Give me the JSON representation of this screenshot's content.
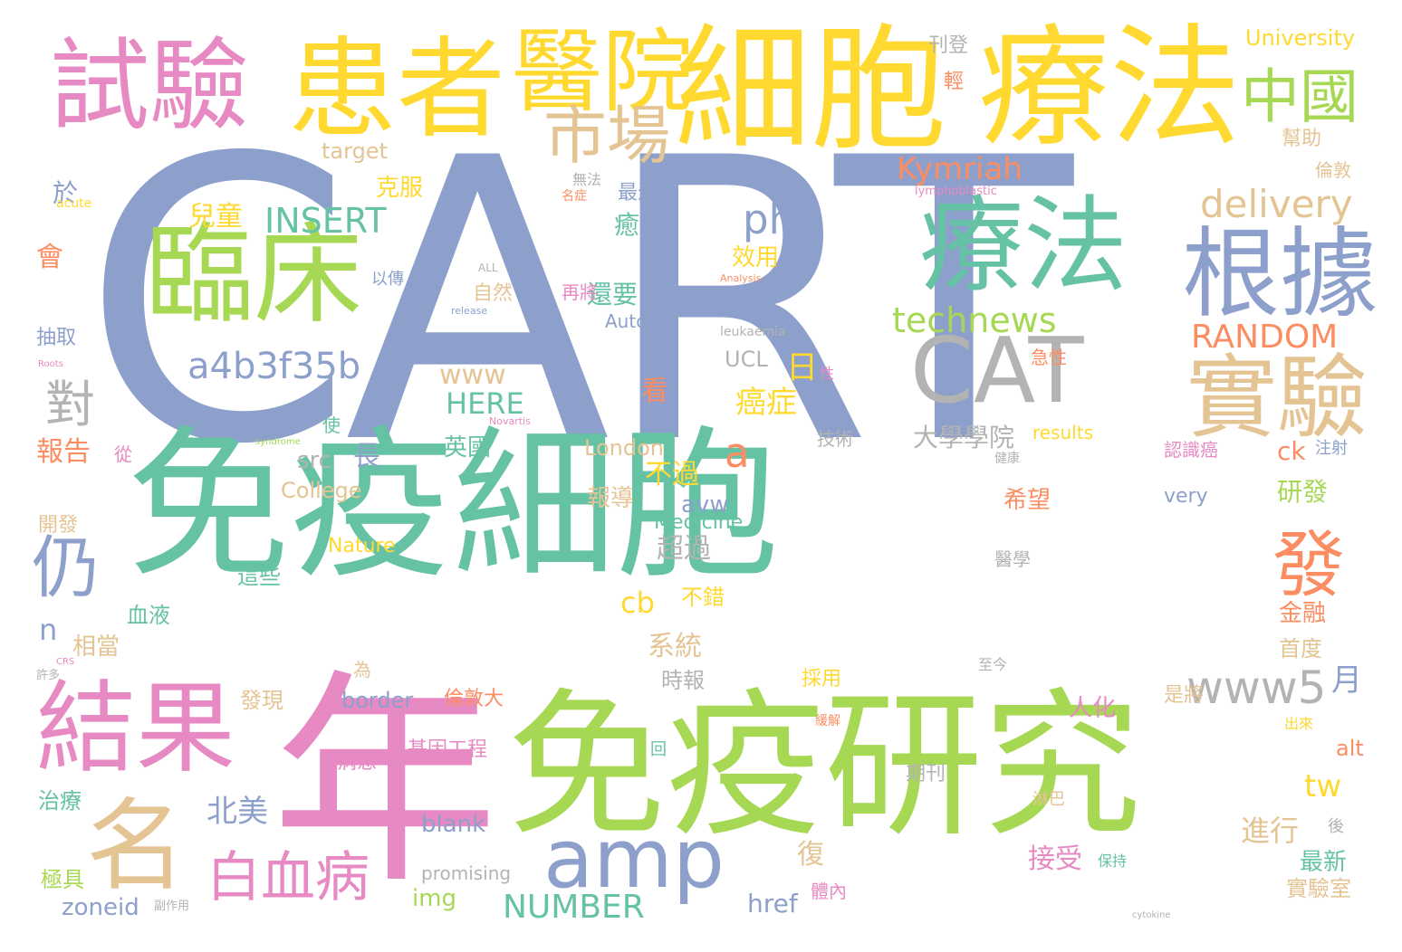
{
  "palette": {
    "teal": "#66c2a5",
    "orange": "#fc8d62",
    "blue": "#8da0cb",
    "pink": "#e78ac3",
    "green": "#a6d854",
    "yellow": "#ffd92f",
    "tan": "#e5c494",
    "gray": "#b3b3b3"
  },
  "words": {
    "cart": "CART",
    "mianyi_xibao": "免疫細胞",
    "mianyi_yanjiu": "免疫研究",
    "nian": "年",
    "xibao": "細胞",
    "liaofa_top": "療法",
    "huanzhe": "患者",
    "yiyuan": "醫院",
    "shiyan_test": "試驗",
    "linchuang": "臨床",
    "liaofa_mid": "療法",
    "genju": "根據",
    "cat": "CAT",
    "shiyan_exp": "實驗",
    "jieguo": "結果",
    "ming": "名",
    "amp": "amp",
    "shichang": "市場",
    "zhongguo": "中國",
    "fa": "發",
    "reng": "仍",
    "www5": "www5",
    "baixuebing": "白血病",
    "dui": "對",
    "a4b3f35b": "a4b3f35b",
    "technews": "technews",
    "delivery": "delivery",
    "php": "php",
    "insert": "INSERT",
    "kymriah": "Kymriah",
    "random": "RANDOM",
    "www": "www",
    "here": "HERE",
    "university": "University",
    "target": "target",
    "ertong": "兒童",
    "kefu": "克服",
    "yu": "於",
    "baogao": "報告",
    "zhang": "長",
    "src": "src",
    "daxuexueyuan": "大學學院",
    "london": "London",
    "college": "College",
    "n": "n",
    "a": "a",
    "ri": "日",
    "aizheng": "癌症",
    "kan": "看",
    "buguo": "不過",
    "chaoguo": "超過",
    "cb": "cb",
    "bucuo": "不錯",
    "xitong": "系統",
    "shibao": "時報",
    "beimei": "北美",
    "fu": "復",
    "jieshou": "接受",
    "number": "NUMBER",
    "zoneid": "zoneid",
    "img": "img",
    "href": "href",
    "blank": "blank",
    "promising": "promising",
    "tw": "tw",
    "jinxing": "進行",
    "yanfa": "研發",
    "ck": "ck",
    "xiwang": "希望",
    "jinrong": "金融",
    "shoudu": "首度",
    "yue": "月",
    "alt": "alt",
    "zuixin": "最新",
    "shiyanshi": "實驗室",
    "auto1": "Auto1",
    "ucl": "UCL",
    "leukaemia": "leukaemia",
    "xiaoyong": "效用",
    "haiyao": "還要",
    "ziran": "自然",
    "yingguo": "英國",
    "baodao": "報導",
    "avw": "avw",
    "medicine": "Medicine",
    "nature": "Nature",
    "zhexie": "這些",
    "xueye": "血液",
    "xiangdang": "相當",
    "kaifa": "開發",
    "zhiliao": "治療",
    "jiju": "極具",
    "faxian": "發現",
    "border": "border",
    "lundunda": "倫敦大",
    "jiyin": "基因工程",
    "bingxuan": "病患",
    "qikan": "期刊",
    "rencai": "人化",
    "shijiang": "是將",
    "caiyong": "採用",
    "results": "results",
    "very": "very",
    "jishu": "技術",
    "yixue": "醫學",
    "renzhi": "認識癌",
    "zhushe": "注射",
    "lunjiao": "倫敦",
    "bangzhu": "幫助",
    "zuijin": "最近",
    "kanzhuo": "刊登",
    "qing": "輕",
    "zaijiang": "再將",
    "yu2": "癒",
    "jixu": "急性",
    "shi": "使",
    "cong": "從",
    "hui": "會",
    "chouqu": "抽取",
    "lymphoblastic": "lymphoblastic",
    "acute": "acute",
    "analysis": "Analysis",
    "release": "release",
    "all": "ALL",
    "syndrome": "syndrome",
    "novartis": "Novartis",
    "roots": "Roots",
    "crs": "CRS",
    "cytokine": "cytokine",
    "yiwei": "以傳",
    "xingbie": "性",
    "weiyu": "為",
    "linba": "淋巴",
    "baochi": "保持",
    "hou": "後",
    "tinei": "體內",
    "fuzuoyong": "副作用",
    "zhijin": "至今",
    "huan": "緩解",
    "xuduo": "許多",
    "jiankang": "健康",
    "wufa": "無法",
    "mingzheng": "名症",
    "fahui": "出來",
    "hui2": "回"
  }
}
